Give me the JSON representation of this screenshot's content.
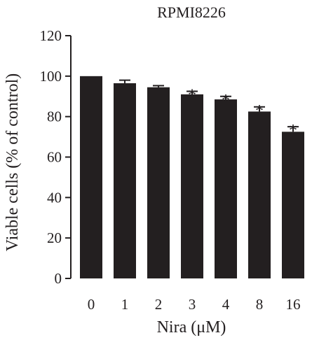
{
  "chart_data": {
    "type": "bar",
    "title": "RPMI8226",
    "xlabel": "Nira (μM)",
    "ylabel": "Viable cells (% of control)",
    "categories": [
      "0",
      "1",
      "2",
      "3",
      "4",
      "8",
      "16"
    ],
    "values": [
      100,
      96.5,
      94.5,
      91,
      88.5,
      82.5,
      72.5
    ],
    "errors": [
      0,
      1.5,
      0.8,
      1.5,
      1.5,
      2.3,
      2.5
    ],
    "significance": [
      "",
      "",
      "",
      "*",
      "*",
      "*",
      "*"
    ],
    "ylim": [
      0,
      120
    ],
    "yticks": [
      0,
      20,
      40,
      60,
      80,
      100,
      120
    ],
    "grid": false,
    "legend": "none",
    "bar_color": "#231f20"
  }
}
